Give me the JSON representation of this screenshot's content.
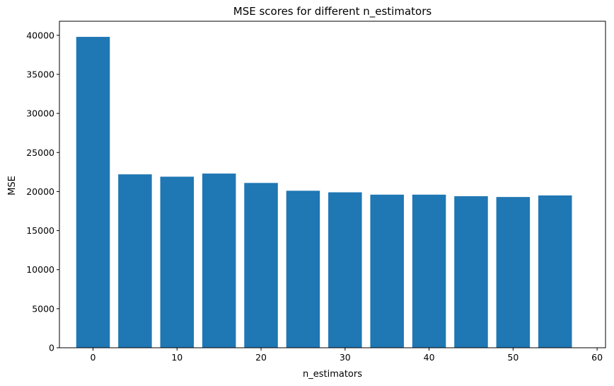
{
  "chart_data": {
    "type": "bar",
    "title": "MSE scores for different n_estimators",
    "xlabel": "n_estimators",
    "ylabel": "MSE",
    "x": [
      0,
      5,
      10,
      15,
      20,
      25,
      30,
      35,
      40,
      45,
      50,
      55
    ],
    "values": [
      39800,
      22200,
      21900,
      22300,
      21100,
      20100,
      19900,
      19600,
      19600,
      19400,
      19300,
      19500
    ],
    "bar_width": 4,
    "xlim": [
      -4,
      61
    ],
    "ylim": [
      0,
      41800
    ],
    "xticks": [
      0,
      10,
      20,
      30,
      40,
      50,
      60
    ],
    "yticks": [
      0,
      5000,
      10000,
      15000,
      20000,
      25000,
      30000,
      35000,
      40000
    ],
    "grid": false,
    "legend": "none",
    "colors": {
      "bar": "#1f77b4",
      "axis": "#000000"
    }
  }
}
